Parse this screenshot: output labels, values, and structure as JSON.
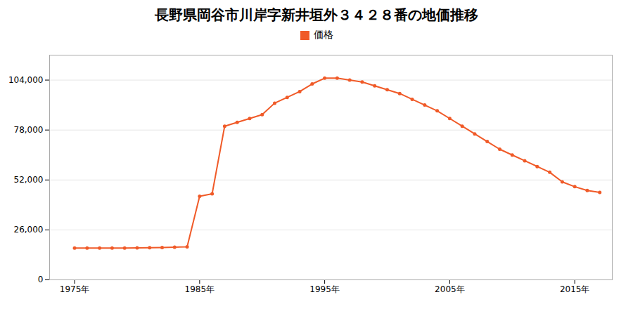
{
  "chart_data": {
    "type": "line",
    "title": "長野県岡谷市川岸字新井垣外３４２８番の地価推移",
    "x": [
      1975,
      1976,
      1977,
      1978,
      1979,
      1980,
      1981,
      1982,
      1983,
      1984,
      1985,
      1986,
      1987,
      1988,
      1989,
      1990,
      1991,
      1992,
      1993,
      1994,
      1995,
      1996,
      1997,
      1998,
      1999,
      2000,
      2001,
      2002,
      2003,
      2004,
      2005,
      2006,
      2007,
      2008,
      2009,
      2010,
      2011,
      2012,
      2013,
      2014,
      2015,
      2016,
      2017
    ],
    "series": [
      {
        "name": "価格",
        "color": "#f05a28",
        "marker": "circle",
        "values": [
          16500,
          16500,
          16500,
          16500,
          16500,
          16600,
          16700,
          16800,
          17000,
          17200,
          43500,
          44800,
          80000,
          82000,
          84000,
          86000,
          92000,
          95000,
          98000,
          102000,
          105000,
          105000,
          104000,
          103000,
          101000,
          99000,
          97000,
          94000,
          91000,
          88000,
          84000,
          80000,
          76000,
          72000,
          68000,
          65000,
          62000,
          59000,
          56000,
          51000,
          48500,
          46500,
          45500
        ]
      }
    ],
    "xlim": [
      1973,
      2018
    ],
    "xticks": [
      {
        "value": 1975,
        "label": "1975年"
      },
      {
        "value": 1985,
        "label": "1985年"
      },
      {
        "value": 1995,
        "label": "1995年"
      },
      {
        "value": 2005,
        "label": "2005年"
      },
      {
        "value": 2015,
        "label": "2015年"
      }
    ],
    "ylim": [
      0,
      117000
    ],
    "yticks": [
      0,
      {
        "value": 26000,
        "label": "26,000"
      },
      {
        "value": 52000,
        "label": "52,000"
      },
      {
        "value": 78000,
        "label": "78,000"
      },
      {
        "value": 104000,
        "label": "104,000"
      }
    ],
    "grid": "y",
    "legend": "top"
  }
}
